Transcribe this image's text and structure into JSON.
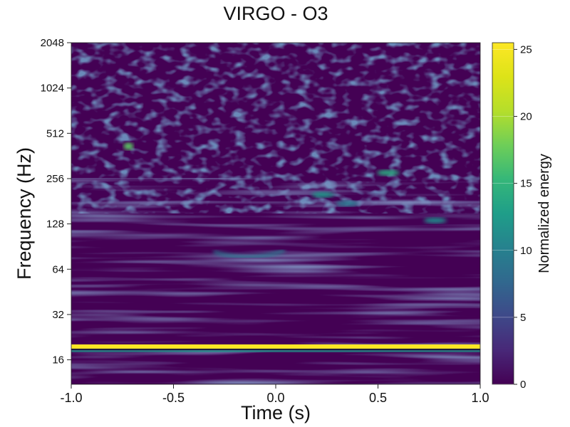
{
  "chart_data": {
    "type": "heatmap",
    "title": "VIRGO - O3",
    "xlabel": "Time (s)",
    "ylabel": "Frequency (Hz)",
    "colorbar_label": "Normalized energy",
    "xlim": [
      -1.0,
      1.0
    ],
    "ylim": [
      11,
      2048
    ],
    "y_scale": "log2",
    "x_ticks": [
      -1.0,
      -0.5,
      0.0,
      0.5,
      1.0
    ],
    "x_tick_labels": [
      "-1.0",
      "-0.5",
      "0.0",
      "0.5",
      "1.0"
    ],
    "y_ticks": [
      16,
      32,
      64,
      128,
      256,
      512,
      1024,
      2048
    ],
    "y_tick_labels": [
      "16",
      "32",
      "64",
      "128",
      "256",
      "512",
      "1024",
      "2048"
    ],
    "colorbar_range": [
      0,
      25.5
    ],
    "colorbar_ticks": [
      0,
      5,
      10,
      15,
      20,
      25
    ],
    "colorbar_tick_labels": [
      "0",
      "5",
      "10",
      "15",
      "20",
      "25"
    ],
    "colormap": "viridis",
    "grid": false,
    "features": [
      {
        "name": "narrow band line",
        "time_start": -1.0,
        "time_end": 1.0,
        "frequency": 19.6,
        "energy": 25.5
      },
      {
        "name": "hot spot",
        "time": -0.72,
        "frequency": 420,
        "energy": 17
      },
      {
        "name": "blob",
        "time": 0.55,
        "frequency": 280,
        "energy": 14
      },
      {
        "name": "blob",
        "time": 0.23,
        "frequency": 200,
        "energy": 12
      },
      {
        "name": "blob",
        "time": 0.78,
        "frequency": 135,
        "energy": 11
      },
      {
        "name": "arc",
        "time": -0.13,
        "frequency": 80,
        "energy": 9
      },
      {
        "name": "blob",
        "time": 0.35,
        "frequency": 175,
        "energy": 9
      }
    ]
  }
}
